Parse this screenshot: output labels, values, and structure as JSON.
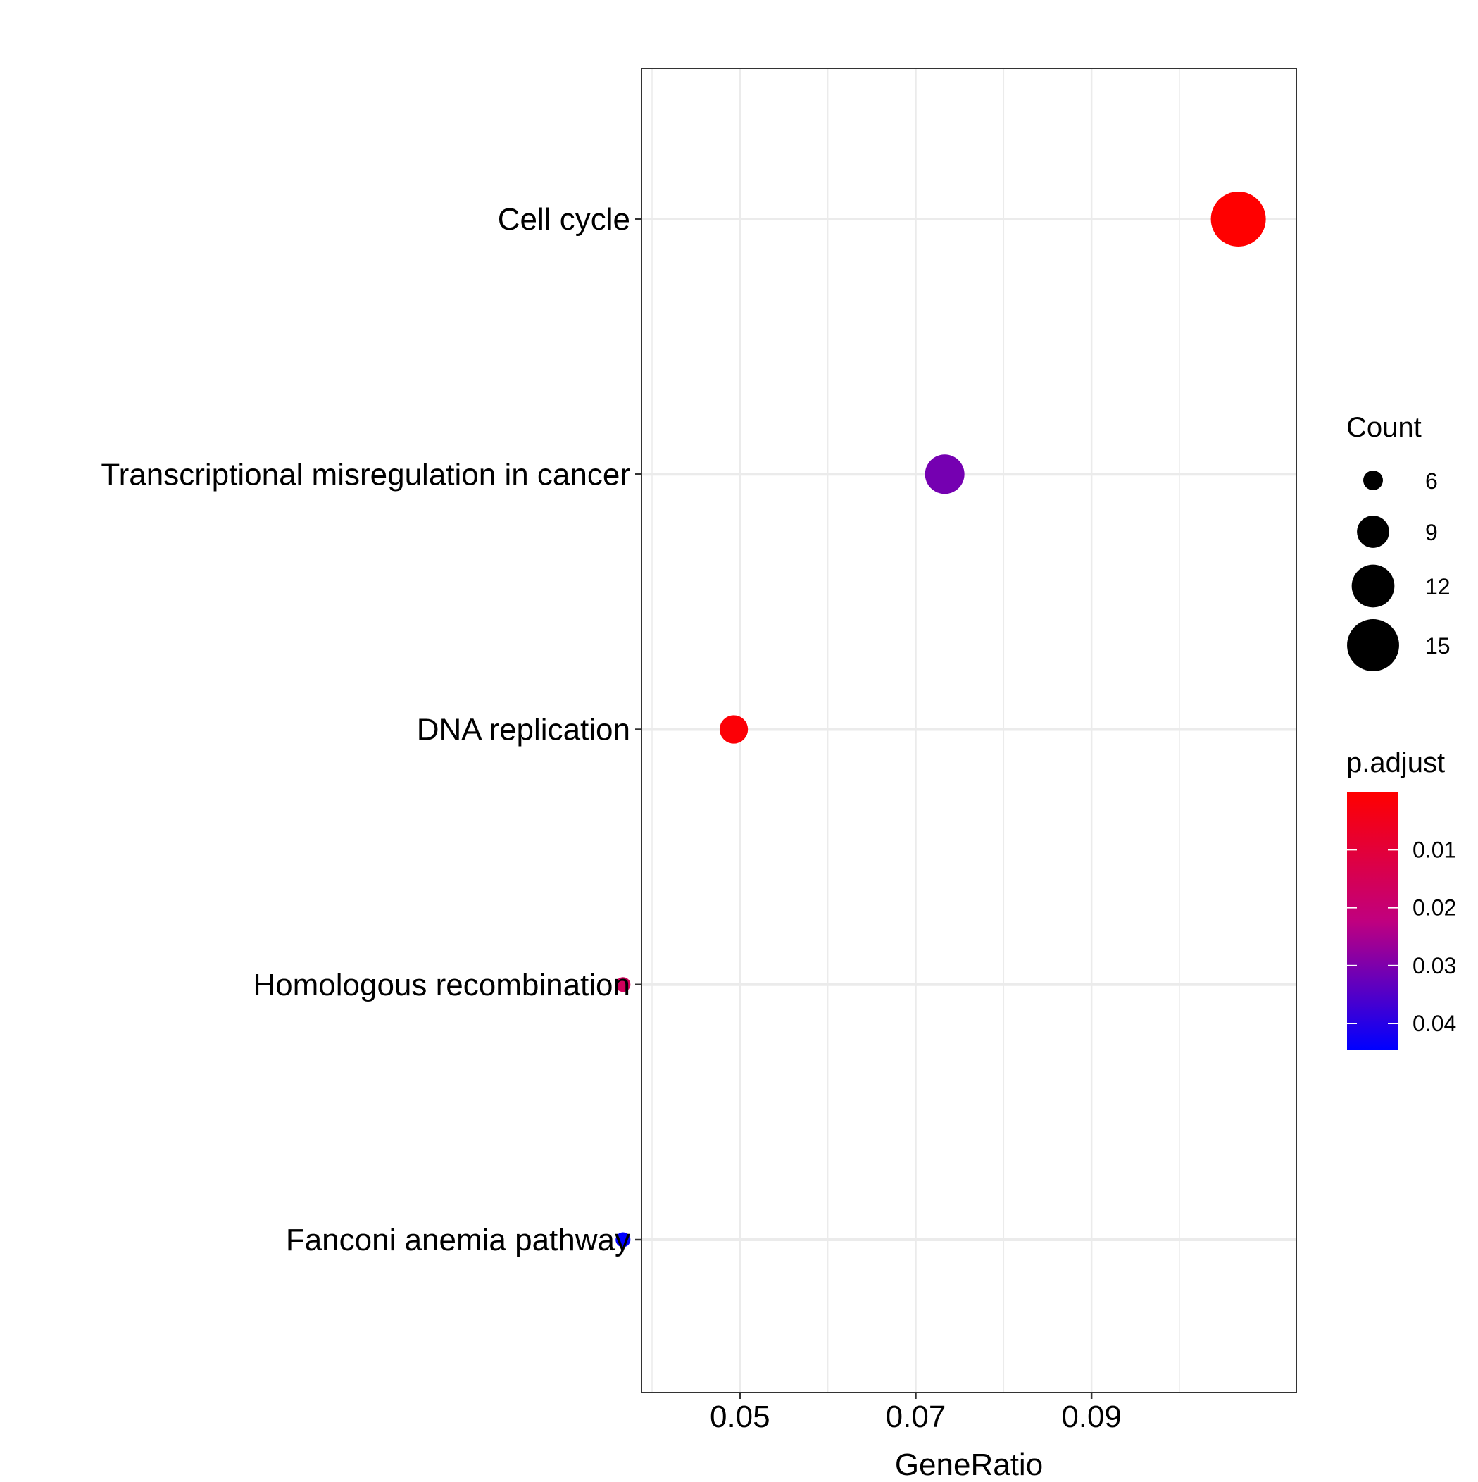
{
  "chart_data": {
    "type": "scatter",
    "xlabel": "GeneRatio",
    "ylabel": "",
    "xlim": [
      0.0388,
      0.1133
    ],
    "x_ticks": [
      {
        "value": 0.05,
        "label": "0.05"
      },
      {
        "value": 0.07,
        "label": "0.07"
      },
      {
        "value": 0.09,
        "label": "0.09"
      }
    ],
    "x_minor_gridlines": [
      0.04,
      0.06,
      0.08,
      0.1
    ],
    "grid": true,
    "categories": [
      "Cell cycle",
      "Transcriptional misregulation in cancer",
      "DNA replication",
      "Homologous recombination",
      "Fanconi anemia pathway"
    ],
    "points": [
      {
        "category": "Cell cycle",
        "gene_ratio": 0.1067,
        "count": 16,
        "p_adjust": 0.0001
      },
      {
        "category": "Transcriptional misregulation in cancer",
        "gene_ratio": 0.0733,
        "count": 11,
        "p_adjust": 0.031
      },
      {
        "category": "DNA replication",
        "gene_ratio": 0.0493,
        "count": 8,
        "p_adjust": 0.0012
      },
      {
        "category": "Homologous recombination",
        "gene_ratio": 0.0367,
        "count": 5,
        "p_adjust": 0.016
      },
      {
        "category": "Fanconi anemia pathway",
        "gene_ratio": 0.0367,
        "count": 5,
        "p_adjust": 0.0445
      }
    ],
    "size_legend": {
      "title": "Count",
      "breaks": [
        6,
        9,
        12,
        15
      ]
    },
    "color_legend": {
      "title": "p.adjust",
      "range": [
        0.0001,
        0.0445
      ],
      "breaks": [
        0.01,
        0.02,
        0.03,
        0.04
      ],
      "labels": [
        "0.01",
        "0.02",
        "0.03",
        "0.04"
      ],
      "low_color": "#FF0000",
      "high_color": "#0000FF"
    },
    "legend_position": "right"
  }
}
